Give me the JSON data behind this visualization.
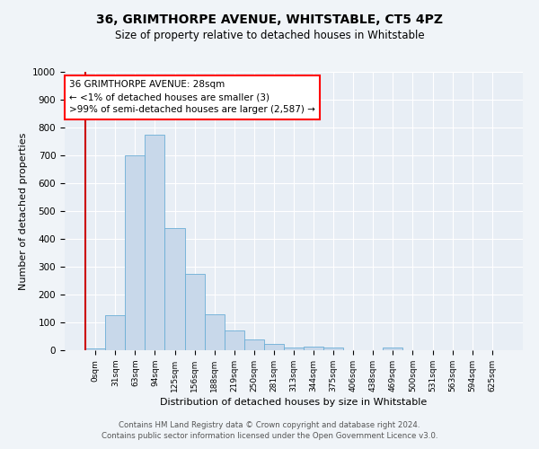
{
  "title1": "36, GRIMTHORPE AVENUE, WHITSTABLE, CT5 4PZ",
  "title2": "Size of property relative to detached houses in Whitstable",
  "xlabel": "Distribution of detached houses by size in Whitstable",
  "ylabel": "Number of detached properties",
  "bar_labels": [
    "0sqm",
    "31sqm",
    "63sqm",
    "94sqm",
    "125sqm",
    "156sqm",
    "188sqm",
    "219sqm",
    "250sqm",
    "281sqm",
    "313sqm",
    "344sqm",
    "375sqm",
    "406sqm",
    "438sqm",
    "469sqm",
    "500sqm",
    "531sqm",
    "563sqm",
    "594sqm",
    "625sqm"
  ],
  "bar_values": [
    8,
    125,
    700,
    775,
    440,
    275,
    130,
    70,
    38,
    22,
    10,
    13,
    10,
    0,
    0,
    10,
    0,
    0,
    0,
    0,
    0
  ],
  "bar_color": "#c8d8ea",
  "bar_edge_color": "#6baed6",
  "ylim": [
    0,
    1000
  ],
  "yticks": [
    0,
    100,
    200,
    300,
    400,
    500,
    600,
    700,
    800,
    900,
    1000
  ],
  "annotation_box_text": "36 GRIMTHORPE AVENUE: 28sqm\n← <1% of detached houses are smaller (3)\n>99% of semi-detached houses are larger (2,587) →",
  "footer1": "Contains HM Land Registry data © Crown copyright and database right 2024.",
  "footer2": "Contains public sector information licensed under the Open Government Licence v3.0.",
  "bg_color": "#f0f4f8",
  "plot_bg_color": "#e8eef5",
  "grid_color": "#ffffff",
  "red_line_color": "#cc0000"
}
